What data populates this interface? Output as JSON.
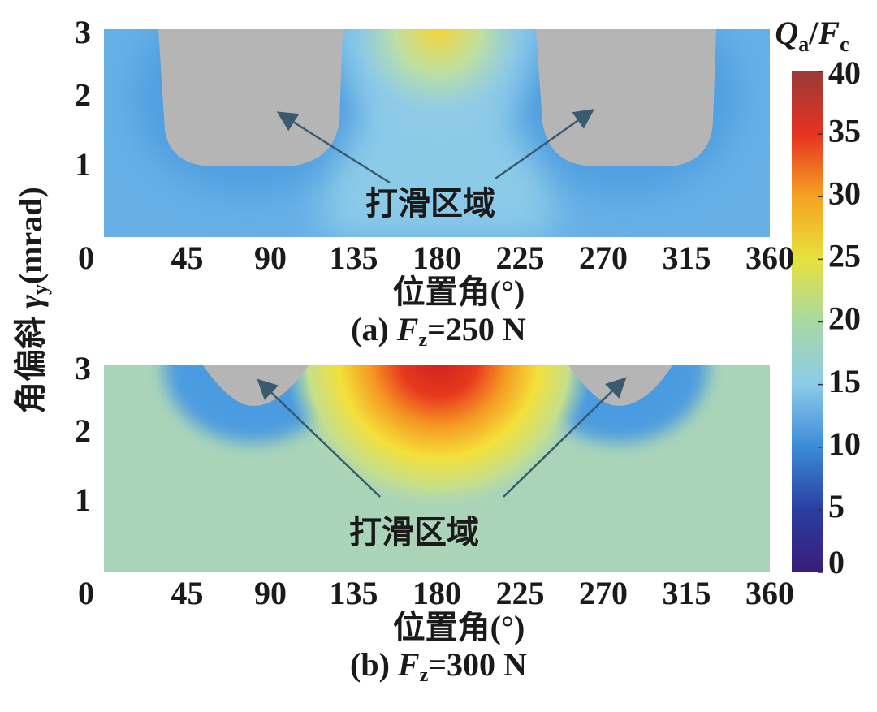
{
  "ylabel": [
    "角偏斜 ",
    "γ",
    "y",
    "(mrad)"
  ],
  "colorbar": {
    "title": [
      "Q",
      "a",
      "/",
      "F",
      "c"
    ],
    "lim": [
      0,
      40
    ],
    "ticks": [
      0,
      5,
      10,
      15,
      20,
      25,
      30,
      35,
      40
    ]
  },
  "chart_data": [
    {
      "type": "heatmap",
      "caption": [
        "(a) ",
        "F",
        "z",
        "=250 N"
      ],
      "xlabel": "位置角(°)",
      "xlim": [
        0,
        360
      ],
      "xticks": [
        0,
        45,
        90,
        135,
        180,
        225,
        270,
        315,
        360
      ],
      "ylim": [
        0,
        3
      ],
      "yticks": [
        1,
        2,
        3
      ],
      "annotation": "打滑区域"
    },
    {
      "type": "heatmap",
      "caption": [
        "(b) ",
        "F",
        "z",
        "=300 N"
      ],
      "xlabel": "位置角(°)",
      "xlim": [
        0,
        360
      ],
      "xticks": [
        0,
        45,
        90,
        135,
        180,
        225,
        270,
        315,
        360
      ],
      "ylim": [
        0,
        3
      ],
      "yticks": [
        1,
        2,
        3
      ],
      "annotation": "打滑区域"
    }
  ]
}
